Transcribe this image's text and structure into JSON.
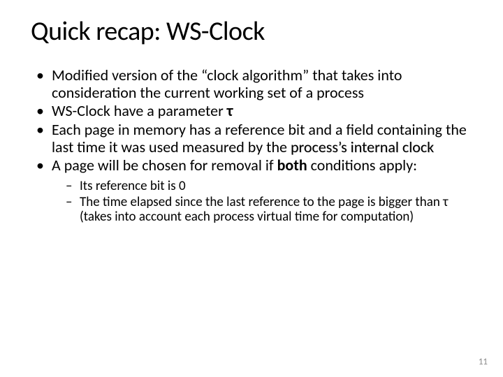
{
  "title": "Quick recap: WS-Clock",
  "bullets": {
    "b1": "Modified version of the “clock algorithm” that takes into consideration the current working set of a process",
    "b2_pre": "WS-Clock have a parameter ",
    "b2_tau": "τ",
    "b3_pre": "Each page in memory has a reference bit and a field containing the last time it was used measured by the ",
    "b3_em": "process’s internal clock",
    "b4_pre": "A page will be chosen for removal if ",
    "b4_bold": "both",
    "b4_post": " conditions apply:"
  },
  "sub": {
    "s1": "Its reference bit is 0",
    "s2": "The time elapsed since the last reference to the page is bigger than τ (takes into account each process virtual time for computation)"
  },
  "pageNumber": "11"
}
